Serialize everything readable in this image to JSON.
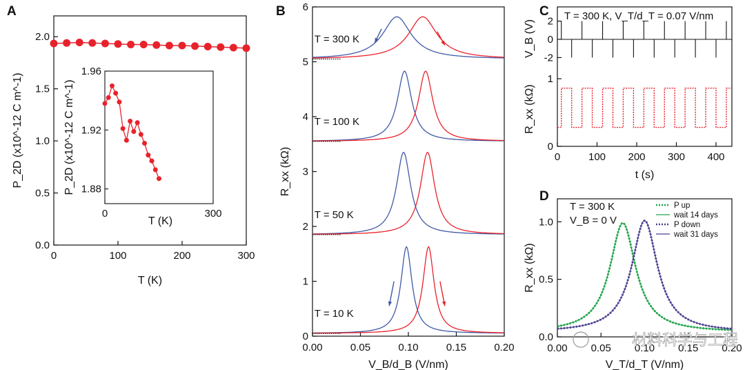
{
  "colors": {
    "red": "#e8222b",
    "blue": "#3f58a5",
    "green": "#1fa34a",
    "purple": "#4a3f8f",
    "axis": "#111111"
  },
  "watermark": "材料科学与工程",
  "chart_data": [
    {
      "id": "A",
      "panel_label": "A",
      "type": "scatter",
      "ylabel": "P_2D (x10^-12 C m^-1)",
      "xlabel": "T (K)",
      "xlim": [
        0,
        300
      ],
      "ylim": [
        0,
        2.2
      ],
      "xticks": [
        0,
        100,
        200,
        300
      ],
      "yticks": [
        0.0,
        0.5,
        1.0,
        1.5,
        2.0
      ],
      "x": [
        0,
        20,
        40,
        60,
        80,
        100,
        120,
        140,
        160,
        180,
        200,
        220,
        240,
        260,
        280,
        300
      ],
      "y": [
        1.935,
        1.94,
        1.945,
        1.94,
        1.935,
        1.93,
        1.925,
        1.925,
        1.92,
        1.915,
        1.915,
        1.91,
        1.905,
        1.9,
        1.895,
        1.89
      ],
      "inset": {
        "xlabel": "T (K)",
        "ylabel": "P_2D (x10^-12 C m^-1)",
        "xlim": [
          0,
          300
        ],
        "ylim": [
          1.87,
          1.96
        ],
        "xticks": [
          0,
          300
        ],
        "yticks": [
          1.88,
          1.92,
          1.96
        ],
        "x": [
          0,
          10,
          20,
          30,
          40,
          50,
          60,
          70,
          80,
          90,
          100,
          110,
          120,
          130,
          140,
          150
        ],
        "y": [
          1.938,
          1.942,
          1.95,
          1.945,
          1.939,
          1.921,
          1.913,
          1.926,
          1.919,
          1.925,
          1.917,
          1.911,
          1.903,
          1.899,
          1.893,
          1.887
        ]
      }
    },
    {
      "id": "B",
      "panel_label": "B",
      "type": "line",
      "xlabel": "V_B/d_B (V/nm)",
      "ylabel": "R_xx (kΩ)",
      "xlim": [
        0,
        0.2
      ],
      "ylim": [
        0,
        6
      ],
      "xticks": [
        0.0,
        0.05,
        0.1,
        0.15,
        0.2
      ],
      "yticks": [
        0,
        1,
        2,
        3,
        4,
        5,
        6
      ],
      "series": [
        {
          "name": "T = 300 K",
          "offset": 5.05,
          "blue_peak": 0.088,
          "red_peak": 0.115,
          "peak_height": 0.77,
          "width": 0.018
        },
        {
          "name": "T = 100 K",
          "offset": 3.55,
          "blue_peak": 0.096,
          "red_peak": 0.118,
          "peak_height": 1.28,
          "width": 0.009
        },
        {
          "name": "T = 50 K",
          "offset": 1.85,
          "blue_peak": 0.095,
          "red_peak": 0.12,
          "peak_height": 1.5,
          "width": 0.009
        },
        {
          "name": "T = 10 K",
          "offset": 0.05,
          "blue_peak": 0.098,
          "red_peak": 0.121,
          "peak_height": 1.58,
          "width": 0.007
        }
      ]
    },
    {
      "id": "C",
      "panel_label": "C",
      "type": "line",
      "annotation": "T = 300 K, V_T/d_T = 0.07 V/nm",
      "xlabel": "t (s)",
      "xlim": [
        0,
        440
      ],
      "xticks": [
        0,
        100,
        200,
        300,
        400
      ],
      "top": {
        "ylabel": "V_B (V)",
        "ylim": [
          -2.5,
          2.5
        ],
        "yticks": [
          -2,
          0,
          2
        ],
        "pulse_times": [
          10,
          36,
          62,
          88,
          114,
          140,
          166,
          192,
          218,
          244,
          270,
          296,
          322,
          348,
          374,
          400,
          426
        ]
      },
      "bottom": {
        "ylabel": "R_xx (kΩ)",
        "ylim": [
          0,
          1.0
        ],
        "yticks": [
          0,
          1
        ],
        "levels": [
          0.86,
          0.28
        ],
        "switch_times": [
          10,
          36,
          62,
          88,
          114,
          140,
          166,
          192,
          218,
          244,
          270,
          296,
          322,
          348,
          374,
          400,
          426
        ]
      }
    },
    {
      "id": "D",
      "panel_label": "D",
      "type": "line",
      "annotation_lines": [
        "T = 300 K",
        "V_B = 0 V"
      ],
      "xlabel": "V_T/d_T (V/nm)",
      "ylabel": "R_xx (kΩ)",
      "xlim": [
        0,
        0.2
      ],
      "ylim": [
        0,
        1.2
      ],
      "xticks": [
        0.0,
        0.05,
        0.1,
        0.15,
        0.2
      ],
      "yticks": [
        0.0,
        0.5,
        1.0
      ],
      "legend": [
        "P up",
        "wait 14 days",
        "P down",
        "wait 31 days"
      ],
      "series": [
        {
          "name": "P up",
          "peak": 0.075,
          "height": 0.95,
          "width": 0.018
        },
        {
          "name": "P down",
          "peak": 0.1,
          "height": 0.97,
          "width": 0.018
        }
      ]
    }
  ]
}
